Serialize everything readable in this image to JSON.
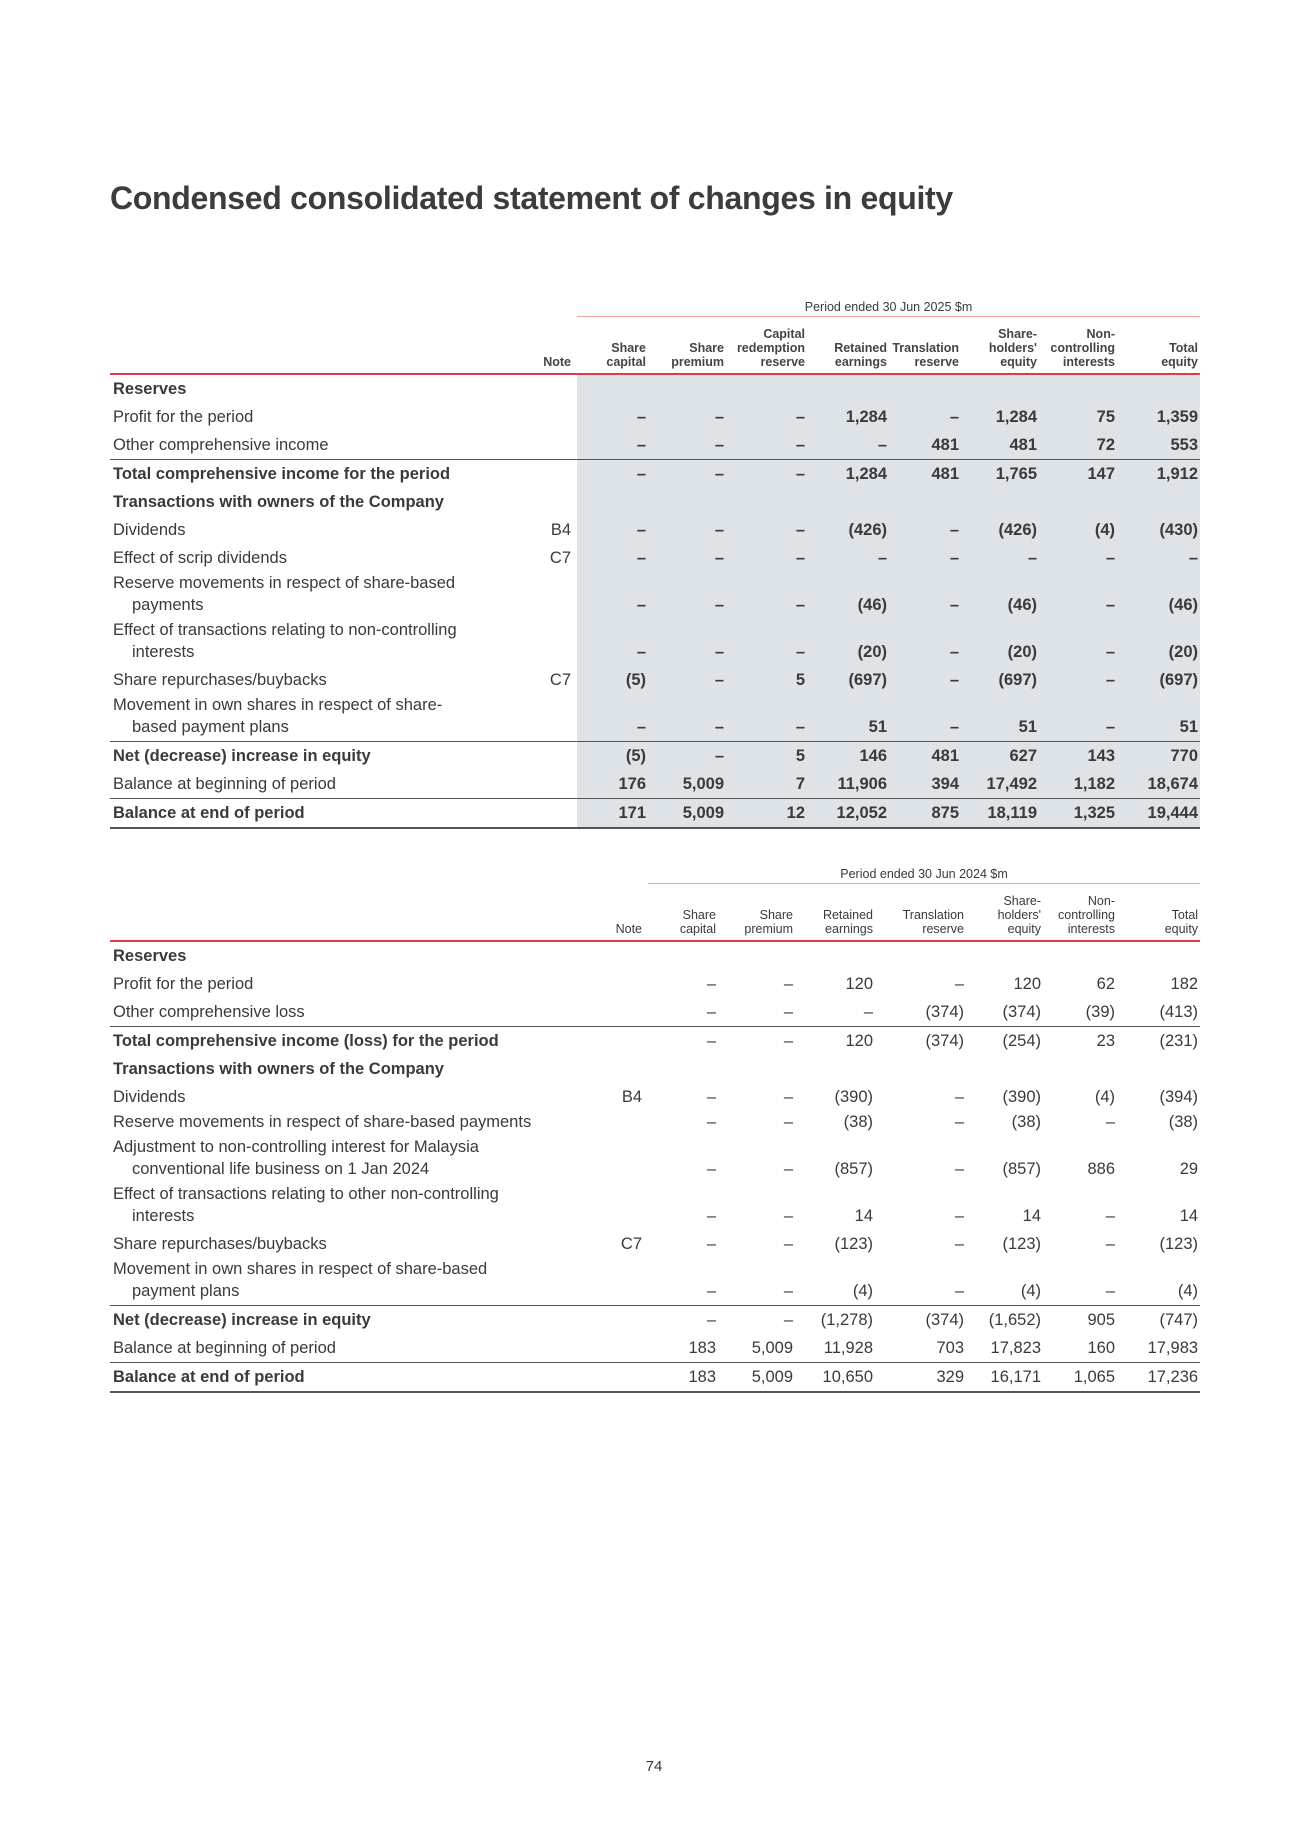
{
  "title": "Condensed consolidated statement of changes in equity",
  "page_number": "74",
  "tables": [
    {
      "period": "Period ended 30 Jun 2025 $m",
      "note_header": "Note",
      "columns": [
        "Share\ncapital",
        "Share\npremium",
        "Capital\nredemption\nreserve",
        "Retained\nearnings",
        "Translation\nreserve",
        "Share-\nholders'\nequity",
        "Non-\ncontrolling\ninterests",
        "Total\nequity"
      ],
      "rows": [
        {
          "label": "Reserves",
          "note": "",
          "style": "heading",
          "values": [
            "",
            "",
            "",
            "",
            "",
            "",
            "",
            ""
          ]
        },
        {
          "label": "Profit for the period",
          "note": "",
          "style": "normal",
          "values": [
            "–",
            "–",
            "–",
            "1,284",
            "–",
            "1,284",
            "75",
            "1,359"
          ]
        },
        {
          "label": "Other comprehensive income",
          "note": "",
          "style": "normal",
          "values": [
            "–",
            "–",
            "–",
            "–",
            "481",
            "481",
            "72",
            "553"
          ]
        },
        {
          "label": "Total comprehensive income for the period",
          "note": "",
          "style": "bold",
          "border_top": true,
          "values": [
            "–",
            "–",
            "–",
            "1,284",
            "481",
            "1,765",
            "147",
            "1,912"
          ]
        },
        {
          "label": "Transactions with owners of the Company",
          "note": "",
          "style": "heading",
          "values": [
            "",
            "",
            "",
            "",
            "",
            "",
            "",
            ""
          ]
        },
        {
          "label": "Dividends",
          "note": "B4",
          "style": "normal",
          "values": [
            "–",
            "–",
            "–",
            "(426)",
            "–",
            "(426)",
            "(4)",
            "(430)"
          ]
        },
        {
          "label": "Effect of scrip dividends",
          "note": "C7",
          "style": "normal",
          "values": [
            "–",
            "–",
            "–",
            "–",
            "–",
            "–",
            "–",
            "–"
          ]
        },
        {
          "label": "Reserve movements in respect of share-based\npayments",
          "note": "",
          "style": "normal",
          "values": [
            "–",
            "–",
            "–",
            "(46)",
            "–",
            "(46)",
            "–",
            "(46)"
          ]
        },
        {
          "label": "Effect of transactions relating to non-controlling\ninterests",
          "note": "",
          "style": "normal",
          "values": [
            "–",
            "–",
            "–",
            "(20)",
            "–",
            "(20)",
            "–",
            "(20)"
          ]
        },
        {
          "label": "Share repurchases/buybacks",
          "note": "C7",
          "style": "normal",
          "values": [
            "(5)",
            "–",
            "5",
            "(697)",
            "–",
            "(697)",
            "–",
            "(697)"
          ]
        },
        {
          "label": "Movement in own shares in respect of share-\nbased payment plans",
          "note": "",
          "style": "normal",
          "values": [
            "–",
            "–",
            "–",
            "51",
            "–",
            "51",
            "–",
            "51"
          ]
        },
        {
          "label": "Net (decrease) increase in equity",
          "note": "",
          "style": "bold",
          "border_top": true,
          "values": [
            "(5)",
            "–",
            "5",
            "146",
            "481",
            "627",
            "143",
            "770"
          ]
        },
        {
          "label": "Balance at beginning of period",
          "note": "",
          "style": "normal",
          "values": [
            "176",
            "5,009",
            "7",
            "11,906",
            "394",
            "17,492",
            "1,182",
            "18,674"
          ]
        },
        {
          "label": "Balance at end of period",
          "note": "",
          "style": "bold",
          "border_top": true,
          "border_bottom": true,
          "values": [
            "171",
            "5,009",
            "12",
            "12,052",
            "875",
            "18,119",
            "1,325",
            "19,444"
          ]
        }
      ]
    },
    {
      "period": "Period ended 30 Jun 2024 $m",
      "note_header": "Note",
      "columns": [
        "Share\ncapital",
        "Share\npremium",
        "Retained\nearnings",
        "Translation\nreserve",
        "Share-\nholders'\nequity",
        "Non-\ncontrolling\ninterests",
        "Total\nequity"
      ],
      "rows": [
        {
          "label": "Reserves",
          "note": "",
          "style": "heading",
          "values": [
            "",
            "",
            "",
            "",
            "",
            "",
            ""
          ]
        },
        {
          "label": "Profit for the period",
          "note": "",
          "style": "normal",
          "values": [
            "–",
            "–",
            "120",
            "–",
            "120",
            "62",
            "182"
          ]
        },
        {
          "label": "Other comprehensive loss",
          "note": "",
          "style": "normal",
          "values": [
            "–",
            "–",
            "–",
            "(374)",
            "(374)",
            "(39)",
            "(413)"
          ]
        },
        {
          "label": "Total comprehensive income (loss) for the period",
          "note": "",
          "style": "bold",
          "border_top": true,
          "values": [
            "–",
            "–",
            "120",
            "(374)",
            "(254)",
            "23",
            "(231)"
          ]
        },
        {
          "label": "Transactions with owners of the Company",
          "note": "",
          "style": "heading",
          "values": [
            "",
            "",
            "",
            "",
            "",
            "",
            ""
          ]
        },
        {
          "label": "Dividends",
          "note": "B4",
          "style": "normal",
          "values": [
            "–",
            "–",
            "(390)",
            "–",
            "(390)",
            "(4)",
            "(394)"
          ]
        },
        {
          "label": "Reserve movements in respect of share-based payments",
          "note": "",
          "style": "normal",
          "tight": true,
          "values": [
            "–",
            "–",
            "(38)",
            "–",
            "(38)",
            "–",
            "(38)"
          ]
        },
        {
          "label": "Adjustment to non-controlling interest for Malaysia\nconventional life business on 1 Jan 2024",
          "note": "",
          "style": "normal",
          "values": [
            "–",
            "–",
            "(857)",
            "–",
            "(857)",
            "886",
            "29"
          ]
        },
        {
          "label": "Effect of transactions relating to other non-controlling\ninterests",
          "note": "",
          "style": "normal",
          "values": [
            "–",
            "–",
            "14",
            "–",
            "14",
            "–",
            "14"
          ]
        },
        {
          "label": "Share repurchases/buybacks",
          "note": "C7",
          "style": "normal",
          "values": [
            "–",
            "–",
            "(123)",
            "–",
            "(123)",
            "–",
            "(123)"
          ]
        },
        {
          "label": "Movement in own shares in respect of share-based\npayment plans",
          "note": "",
          "style": "normal",
          "values": [
            "–",
            "–",
            "(4)",
            "–",
            "(4)",
            "–",
            "(4)"
          ]
        },
        {
          "label": "Net (decrease) increase in equity",
          "note": "",
          "style": "bold",
          "border_top": true,
          "values": [
            "–",
            "–",
            "(1,278)",
            "(374)",
            "(1,652)",
            "905",
            "(747)"
          ]
        },
        {
          "label": "Balance at beginning of period",
          "note": "",
          "style": "normal",
          "values": [
            "183",
            "5,009",
            "11,928",
            "703",
            "17,823",
            "160",
            "17,983"
          ]
        },
        {
          "label": "Balance at end of period",
          "note": "",
          "style": "bold",
          "border_top": true,
          "border_bottom": true,
          "values": [
            "183",
            "5,009",
            "10,650",
            "329",
            "16,171",
            "1,065",
            "17,236"
          ]
        }
      ]
    }
  ]
}
